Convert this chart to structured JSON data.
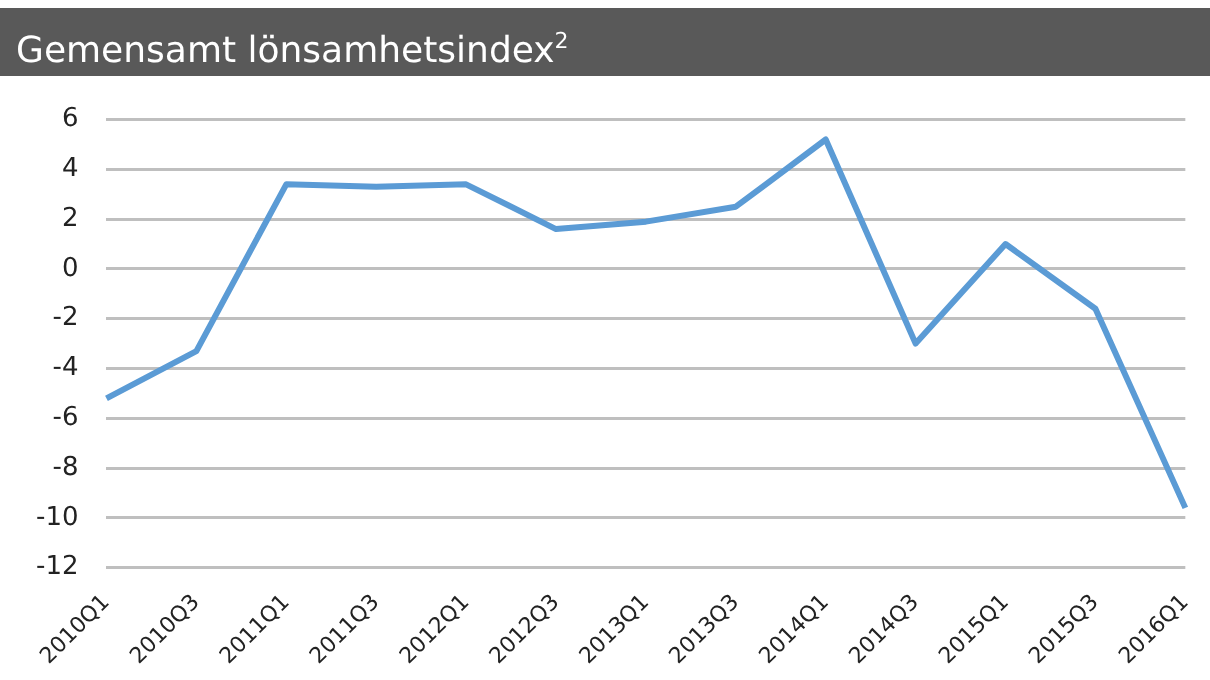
{
  "chart_data": {
    "type": "line",
    "title": "Gemensamt lönsamhetsindex$^{2}$",
    "categories": [
      "2010Q1",
      "2010Q3",
      "2011Q1",
      "2011Q3",
      "2012Q1",
      "2012Q3",
      "2013Q1",
      "2013Q3",
      "2014Q1",
      "2014Q3",
      "2015Q1",
      "2015Q3",
      "2016Q1"
    ],
    "series": [
      {
        "color": "#5b9bd5",
        "values": [
          -5.2,
          -3.3,
          3.4,
          3.3,
          3.4,
          1.6,
          1.9,
          2.5,
          5.2,
          -3.0,
          1.0,
          -1.6,
          -9.6
        ]
      }
    ],
    "ylim": [
      -12,
      6
    ],
    "yticks": [
      -12,
      -10,
      -8,
      -6,
      -4,
      -2,
      0,
      2,
      4,
      6
    ],
    "grid": "y",
    "legend": false,
    "marker": "none",
    "line_style": "solid"
  }
}
